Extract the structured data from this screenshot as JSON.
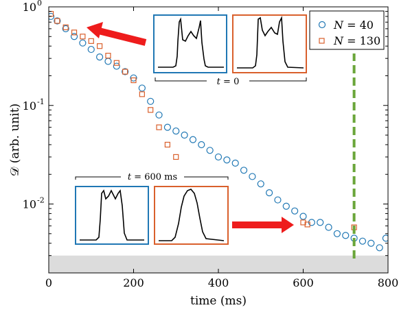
{
  "chart_data": {
    "type": "scatter",
    "xlabel": "time (ms)",
    "ylabel": "𝒟 (arb. unit)",
    "xlim": [
      0,
      800
    ],
    "ylim": [
      0.002,
      1
    ],
    "yscale": "log",
    "x_ticks": [
      0,
      200,
      400,
      600,
      800
    ],
    "x_tick_labels": [
      "0",
      "200",
      "400",
      "600",
      "800"
    ],
    "y_ticks": [
      0.01,
      0.1,
      1
    ],
    "y_tick_labels": [
      "10",
      "10",
      "10"
    ],
    "y_tick_exponents": [
      "-2",
      "-1",
      "0"
    ],
    "legend_position": "top-right",
    "grid": false,
    "noise_floor": {
      "upper": 0.003,
      "color": "#dcdcdc"
    },
    "vline": {
      "x": 720,
      "color": "#6aa63a",
      "style": "dashed"
    },
    "series": [
      {
        "name": "N = 40",
        "legend_label": {
          "var": "N",
          "rel": " = ",
          "val": "40"
        },
        "marker": "circle",
        "color": "#1f77b4",
        "x": [
          5,
          20,
          40,
          60,
          80,
          100,
          120,
          140,
          160,
          180,
          200,
          220,
          240,
          260,
          280,
          300,
          320,
          340,
          360,
          380,
          400,
          420,
          440,
          460,
          480,
          500,
          520,
          540,
          560,
          580,
          600,
          620,
          640,
          660,
          680,
          700,
          720,
          740,
          760,
          780,
          795
        ],
        "y": [
          0.8,
          0.72,
          0.6,
          0.5,
          0.43,
          0.37,
          0.31,
          0.28,
          0.25,
          0.22,
          0.19,
          0.15,
          0.11,
          0.08,
          0.06,
          0.055,
          0.05,
          0.045,
          0.04,
          0.035,
          0.03,
          0.028,
          0.026,
          0.022,
          0.019,
          0.016,
          0.013,
          0.011,
          0.0095,
          0.0085,
          0.0075,
          0.0065,
          0.0065,
          0.0058,
          0.005,
          0.0048,
          0.0045,
          0.0042,
          0.004,
          0.0036,
          0.0045
        ]
      },
      {
        "name": "N = 130",
        "legend_label": {
          "var": "N",
          "rel": " = ",
          "val": "130"
        },
        "marker": "square",
        "color": "#d95f2b",
        "x": [
          5,
          20,
          40,
          60,
          80,
          100,
          120,
          140,
          160,
          180,
          200,
          220,
          240,
          260,
          280,
          300,
          600,
          610,
          720
        ],
        "y": [
          0.85,
          0.72,
          0.62,
          0.55,
          0.5,
          0.45,
          0.4,
          0.32,
          0.27,
          0.22,
          0.18,
          0.13,
          0.09,
          0.06,
          0.04,
          0.03,
          0.0065,
          0.0062,
          0.0058
        ]
      }
    ],
    "annotations": [
      {
        "id": "t0",
        "text": "t = 0",
        "var": "t",
        "rel": " = ",
        "val": "0"
      },
      {
        "id": "t600",
        "text": "t = 600 ms",
        "var": "t",
        "rel": " = ",
        "val": "600 ms"
      }
    ]
  }
}
